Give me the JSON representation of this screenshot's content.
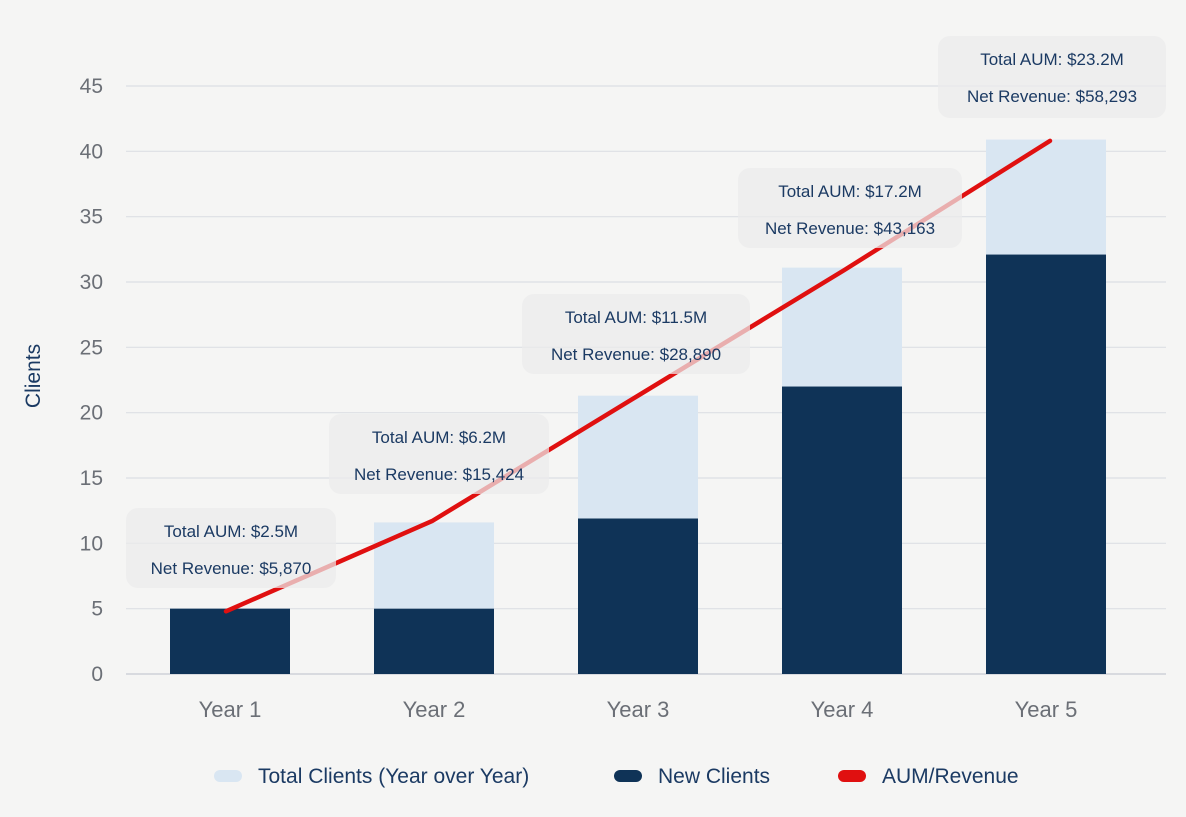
{
  "chart_data": {
    "type": "bar",
    "ylabel": "Clients",
    "xlabel": "",
    "ylim": [
      0,
      45
    ],
    "yticks": [
      0,
      5,
      10,
      15,
      20,
      25,
      30,
      35,
      40,
      45
    ],
    "grid": true,
    "categories": [
      "Year 1",
      "Year 2",
      "Year 3",
      "Year 4",
      "Year 5"
    ],
    "series": [
      {
        "name": "Total Clients (Year over Year)",
        "kind": "bar-overlay",
        "color": "#d9e6f2",
        "values": [
          5,
          11.6,
          21.3,
          31.1,
          40.9
        ]
      },
      {
        "name": "New Clients",
        "kind": "bar",
        "color": "#0f3357",
        "values": [
          5,
          5,
          11.9,
          22,
          32.1
        ]
      },
      {
        "name": "AUM/Revenue",
        "kind": "line",
        "color": "#e01010",
        "values": [
          4.8,
          11.7,
          21.3,
          30.9,
          40.8
        ]
      }
    ],
    "annotations": [
      {
        "aum": "Total AUM: $2.5M",
        "revenue": "Net Revenue: $5,870"
      },
      {
        "aum": "Total AUM: $6.2M",
        "revenue": "Net Revenue: $15,424"
      },
      {
        "aum": "Total AUM: $11.5M",
        "revenue": "Net Revenue: $28,890"
      },
      {
        "aum": "Total AUM: $17.2M",
        "revenue": "Net Revenue: $43,163"
      },
      {
        "aum": "Total AUM: $23.2M",
        "revenue": "Net Revenue: $58,293"
      }
    ],
    "legend": {
      "placement": "bottom",
      "items": [
        "Total Clients (Year over Year)",
        "New Clients",
        "AUM/Revenue"
      ]
    }
  }
}
